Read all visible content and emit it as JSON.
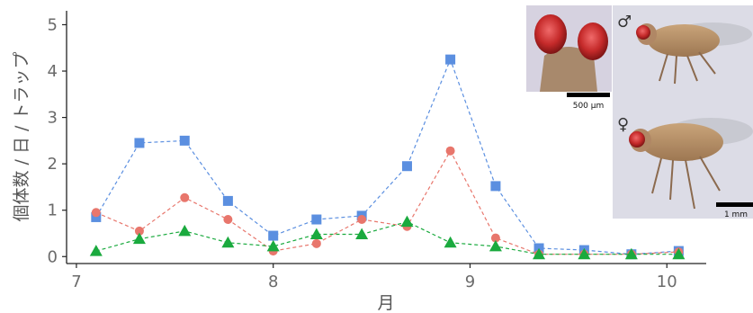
{
  "chart_data": {
    "type": "line",
    "title": "",
    "xlabel": "月",
    "ylabel": "個体数 / 日 / トラップ",
    "xlim": [
      6.95,
      10.2
    ],
    "ylim": [
      -0.15,
      5.3
    ],
    "x_ticks": [
      "7",
      "8",
      "9",
      "10"
    ],
    "y_ticks": [
      "0",
      "1",
      "2",
      "3",
      "4",
      "5"
    ],
    "grid": false,
    "legend": "none",
    "series": [
      {
        "marker": "square",
        "color": "#5b8fe0",
        "x": [
          7.1,
          7.32,
          7.55,
          7.77,
          8.0,
          8.22,
          8.45,
          8.68,
          8.9,
          9.13,
          9.35,
          9.58,
          9.82,
          10.06
        ],
        "y": [
          0.85,
          2.45,
          2.5,
          1.2,
          0.45,
          0.8,
          0.88,
          1.95,
          4.25,
          1.52,
          0.18,
          0.14,
          0.05,
          0.12
        ]
      },
      {
        "marker": "circle",
        "color": "#e8766c",
        "x": [
          7.1,
          7.32,
          7.55,
          7.77,
          8.0,
          8.22,
          8.45,
          8.68,
          8.9,
          9.13,
          9.35,
          9.58,
          9.82,
          10.06
        ],
        "y": [
          0.95,
          0.55,
          1.27,
          0.8,
          0.12,
          0.28,
          0.8,
          0.65,
          2.28,
          0.4,
          0.05,
          0.05,
          0.05,
          0.1
        ]
      },
      {
        "marker": "triangle",
        "color": "#1aaa3e",
        "x": [
          7.1,
          7.32,
          7.55,
          7.77,
          8.0,
          8.22,
          8.45,
          8.68,
          8.9,
          9.13,
          9.35,
          9.58,
          9.82,
          10.06
        ],
        "y": [
          0.12,
          0.38,
          0.55,
          0.3,
          0.22,
          0.48,
          0.48,
          0.75,
          0.3,
          0.22,
          0.05,
          0.05,
          0.05,
          0.05
        ]
      }
    ]
  },
  "insets": {
    "head_scale_label": "500 µm",
    "body_scale_label": "1 mm",
    "male_symbol": "♂",
    "female_symbol": "♀"
  }
}
